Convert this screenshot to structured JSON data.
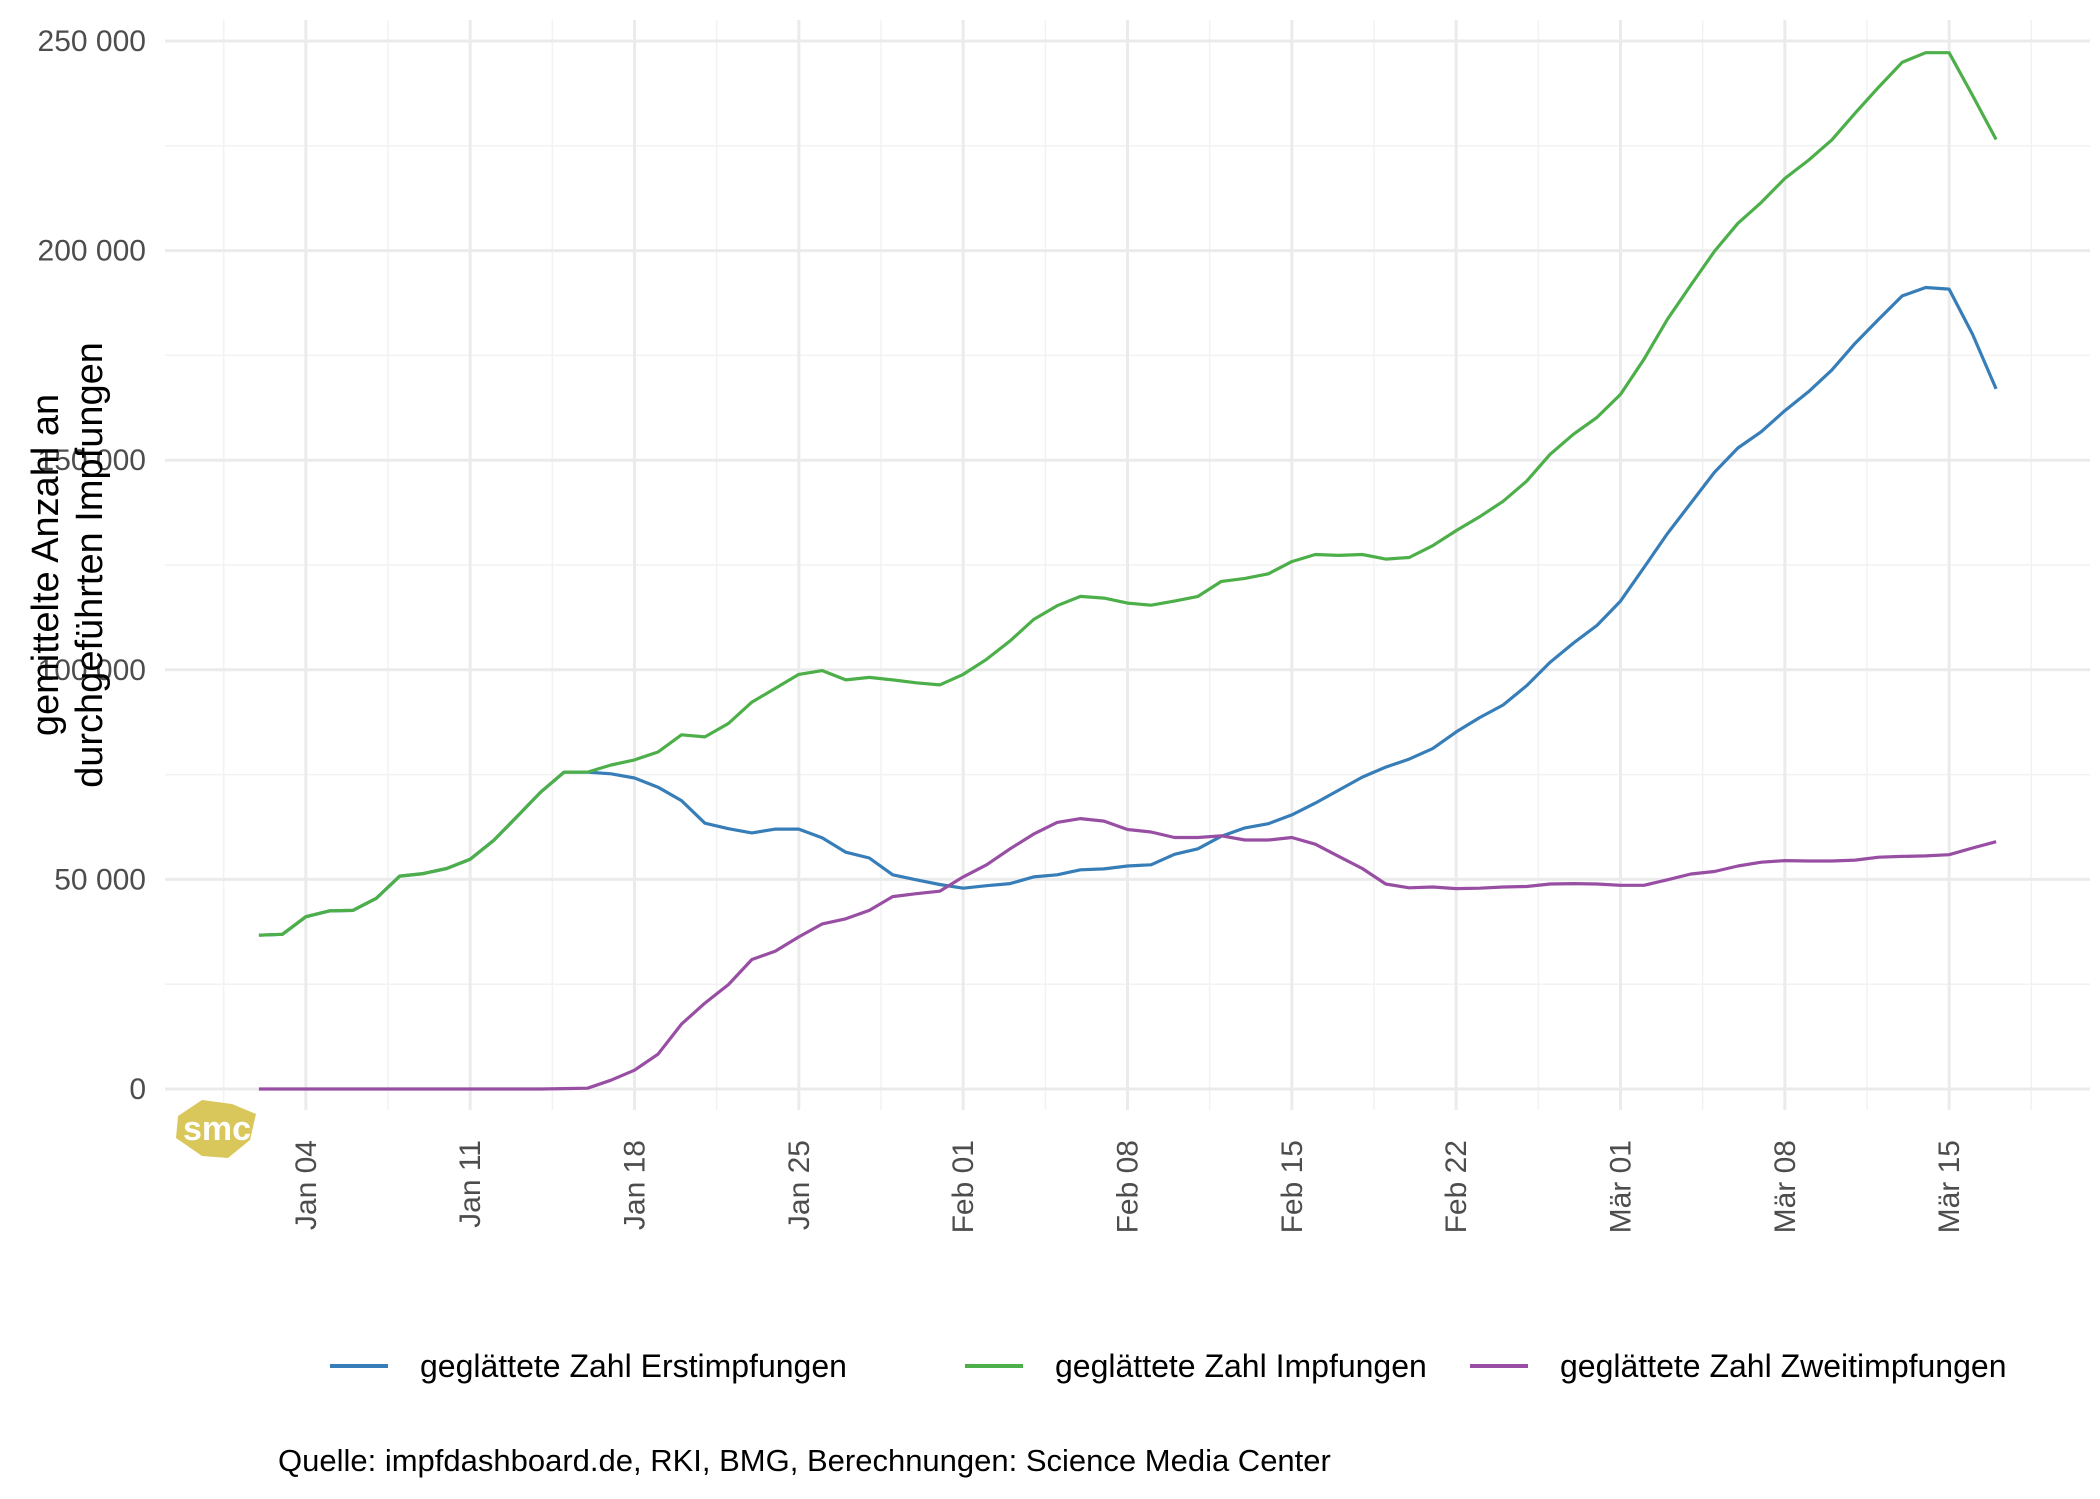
{
  "chart_data": {
    "type": "line",
    "title": "",
    "xlabel": "",
    "ylabel": "gemittelte Anzahl an\ndurchgeführten Impfungen",
    "ylim": [
      -5000,
      255000
    ],
    "xlim": [
      "2020-12-29",
      "2021-03-21"
    ],
    "y_ticks": [
      0,
      50000,
      100000,
      150000,
      200000,
      250000
    ],
    "y_tick_labels": [
      "0",
      "50 000",
      "100 000",
      "150 000",
      "200 000",
      "250 000"
    ],
    "x_ticks": [
      "2021-01-04",
      "2021-01-11",
      "2021-01-18",
      "2021-01-25",
      "2021-02-01",
      "2021-02-08",
      "2021-02-15",
      "2021-02-22",
      "2021-03-01",
      "2021-03-08",
      "2021-03-15"
    ],
    "x_tick_labels": [
      "Jan 04",
      "Jan 11",
      "Jan 18",
      "Jan 25",
      "Feb 01",
      "Feb 08",
      "Feb 15",
      "Feb 22",
      "Mär 01",
      "Mär 08",
      "Mär 15"
    ],
    "x_start": "2021-01-02",
    "x_step_days": 1,
    "grid": true,
    "legend_position": "bottom",
    "series": [
      {
        "name": "geglättete Zahl Erstimpfungen",
        "color": "#377EB8",
        "values": [
          36700,
          36900,
          41100,
          42500,
          42600,
          45500,
          50800,
          51400,
          52600,
          54800,
          59300,
          65000,
          70800,
          75600,
          75600,
          75200,
          74200,
          72000,
          68800,
          63400,
          62100,
          61100,
          62000,
          62000,
          59900,
          56500,
          55100,
          51100,
          49900,
          48800,
          47900,
          48500,
          49000,
          50600,
          51100,
          52300,
          52500,
          53200,
          53500,
          56000,
          57300,
          60300,
          62300,
          63300,
          65400,
          68200,
          71300,
          74400,
          76800,
          78700,
          81200,
          85200,
          88600,
          91600,
          96200,
          101800,
          106400,
          110600,
          116400,
          124400,
          132500,
          139800,
          147100,
          152900,
          156800,
          161800,
          166300,
          171500,
          177900,
          183600,
          189200,
          191200,
          190800,
          180000,
          167000
        ]
      },
      {
        "name": "geglättete Zahl Impfungen",
        "color": "#4DAF4A",
        "values": [
          36700,
          36900,
          41100,
          42500,
          42600,
          45500,
          50800,
          51400,
          52600,
          54800,
          59300,
          65000,
          70800,
          75600,
          75600,
          77300,
          78500,
          80400,
          84500,
          84000,
          87200,
          92300,
          95600,
          98900,
          99800,
          97600,
          98200,
          97600,
          96900,
          96400,
          98900,
          102500,
          106900,
          112000,
          115300,
          117500,
          117100,
          115900,
          115400,
          116400,
          117500,
          121100,
          121800,
          122900,
          125800,
          127500,
          127300,
          127500,
          126400,
          126800,
          129600,
          133200,
          136500,
          140200,
          145000,
          151400,
          156200,
          160200,
          165700,
          174100,
          183600,
          191800,
          199800,
          206500,
          211500,
          217200,
          221500,
          226400,
          232800,
          239000,
          244900,
          247200,
          247200,
          237000,
          226500
        ]
      },
      {
        "name": "geglättete Zahl Zweitimpfungen",
        "color": "#984EA3",
        "values": [
          0,
          0,
          0,
          0,
          0,
          0,
          0,
          0,
          0,
          0,
          0,
          0,
          0,
          100,
          200,
          2100,
          4500,
          8300,
          15500,
          20500,
          24900,
          30900,
          32900,
          36300,
          39400,
          40600,
          42600,
          45900,
          46600,
          47200,
          50600,
          53500,
          57300,
          60800,
          63600,
          64500,
          63900,
          61900,
          61300,
          60000,
          60000,
          60400,
          59400,
          59400,
          60000,
          58400,
          55500,
          52600,
          48900,
          48000,
          48200,
          47800,
          47900,
          48200,
          48300,
          48900,
          49000,
          48900,
          48600,
          48600,
          49900,
          51300,
          51900,
          53200,
          54100,
          54500,
          54400,
          54400,
          54600,
          55300,
          55500,
          55600,
          55900,
          57500,
          59000
        ]
      }
    ]
  },
  "caption": "Quelle: impfdashboard.de, RKI, BMG, Berechnungen: Science Media Center",
  "logo_text": "smc",
  "colors": {
    "grid_major": "#ebebeb",
    "grid_minor": "#f2f2f2",
    "logo": "#D9C75B"
  }
}
